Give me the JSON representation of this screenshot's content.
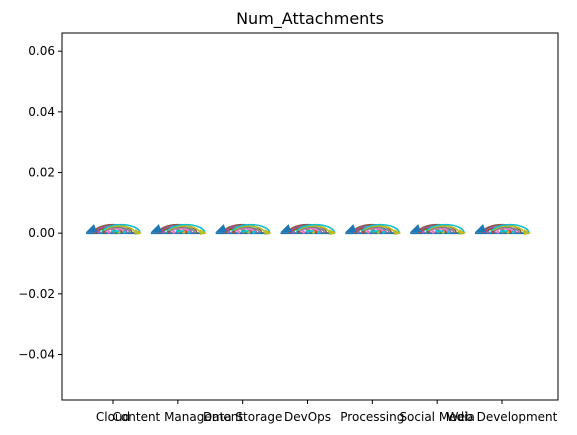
{
  "chart_data": {
    "type": "scatter",
    "title": "Num_Attachments",
    "xlabel": "",
    "ylabel": "",
    "ylim": [
      -0.055,
      0.066
    ],
    "yticks": [
      -0.04,
      -0.02,
      0.0,
      0.02,
      0.04,
      0.06
    ],
    "ytick_labels": [
      "−0.04",
      "−0.02",
      "0.00",
      "0.02",
      "0.04",
      "0.06"
    ],
    "categories": [
      "Cloud",
      "Content Management",
      "Data Storage",
      "DevOps",
      "Processing",
      "Social Media",
      "Web Development"
    ],
    "xtick_labels": [
      "Cloud",
      "Content Management",
      "Data Storage",
      "DevOps",
      "Processing",
      "Social Media",
      "Web Development"
    ],
    "values": [
      0,
      0,
      0,
      0,
      0,
      0,
      0
    ],
    "grid": false,
    "legend": "none",
    "marker_colors": [
      "#1f77b4",
      "#ff7f0e",
      "#2ca02c",
      "#d62728",
      "#9467bd",
      "#8c564b",
      "#e377c2",
      "#7f7f7f",
      "#bcbd22",
      "#17becf"
    ]
  }
}
